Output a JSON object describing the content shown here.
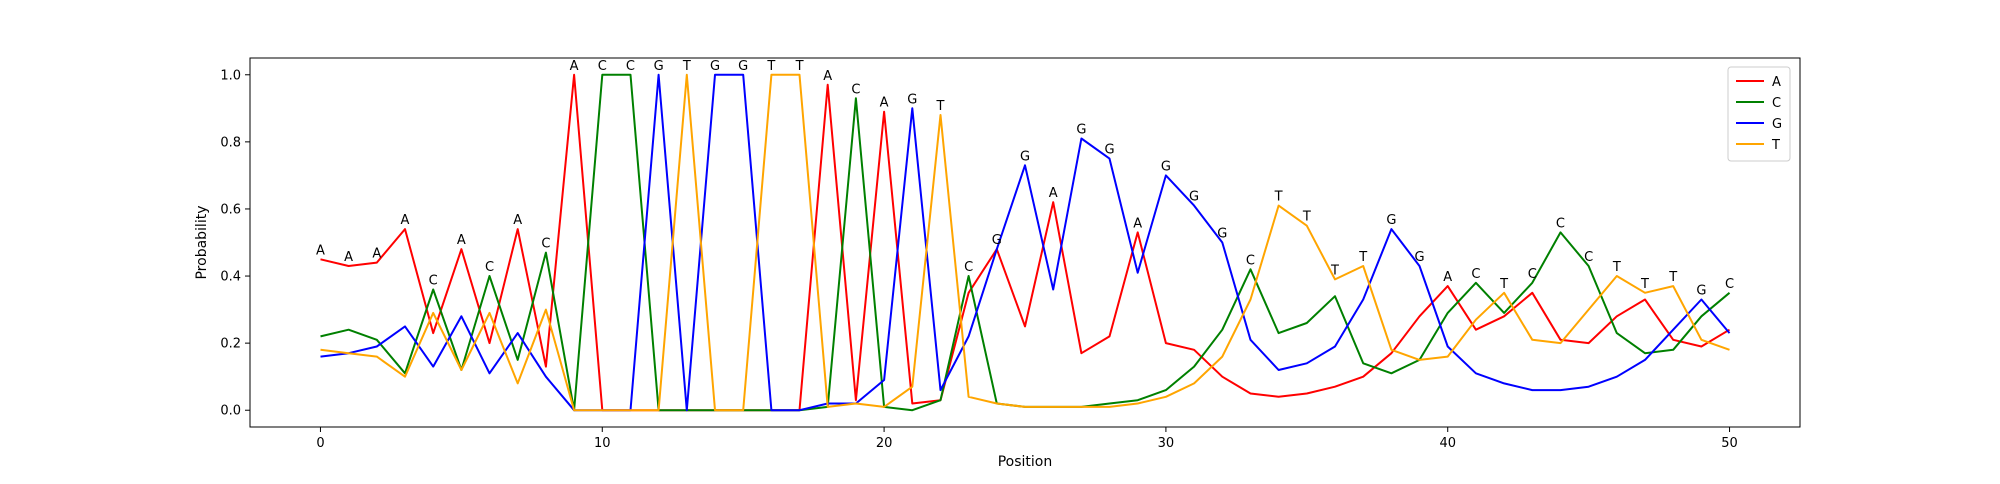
{
  "chart_data": {
    "type": "line",
    "title": "",
    "xlabel": "Position",
    "ylabel": "Probability",
    "xlim": [
      -2.5,
      52.5
    ],
    "ylim": [
      -0.05,
      1.05
    ],
    "xticks": [
      0,
      10,
      20,
      30,
      40,
      50
    ],
    "yticks": [
      0.0,
      0.2,
      0.4,
      0.6,
      0.8,
      1.0
    ],
    "x_tick_labels": [
      "0",
      "10",
      "20",
      "30",
      "40",
      "50"
    ],
    "y_tick_labels": [
      "0.0",
      "0.2",
      "0.4",
      "0.6",
      "0.8",
      "1.0"
    ],
    "grid": false,
    "legend_position": "top-right",
    "x": [
      0,
      1,
      2,
      3,
      4,
      5,
      6,
      7,
      8,
      9,
      10,
      11,
      12,
      13,
      14,
      15,
      16,
      17,
      18,
      19,
      20,
      21,
      22,
      23,
      24,
      25,
      26,
      27,
      28,
      29,
      30,
      31,
      32,
      33,
      34,
      35,
      36,
      37,
      38,
      39,
      40,
      41,
      42,
      43,
      44,
      45,
      46,
      47,
      48,
      49,
      50
    ],
    "series": [
      {
        "name": "A",
        "color": "#ff0000",
        "values": [
          0.45,
          0.43,
          0.44,
          0.54,
          0.23,
          0.48,
          0.2,
          0.54,
          0.13,
          1.0,
          0.0,
          0.0,
          0.0,
          0.0,
          0.0,
          0.0,
          0.0,
          0.0,
          0.97,
          0.03,
          0.89,
          0.02,
          0.03,
          0.35,
          0.48,
          0.25,
          0.62,
          0.17,
          0.22,
          0.53,
          0.2,
          0.18,
          0.1,
          0.05,
          0.04,
          0.05,
          0.07,
          0.1,
          0.17,
          0.28,
          0.37,
          0.24,
          0.28,
          0.35,
          0.21,
          0.2,
          0.28,
          0.33,
          0.21,
          0.19,
          0.24
        ]
      },
      {
        "name": "C",
        "color": "#008000",
        "values": [
          0.22,
          0.24,
          0.21,
          0.11,
          0.36,
          0.12,
          0.4,
          0.15,
          0.47,
          0.0,
          1.0,
          1.0,
          0.0,
          0.0,
          0.0,
          0.0,
          0.0,
          0.0,
          0.01,
          0.93,
          0.01,
          0.0,
          0.03,
          0.4,
          0.02,
          0.01,
          0.01,
          0.01,
          0.02,
          0.03,
          0.06,
          0.13,
          0.24,
          0.42,
          0.23,
          0.26,
          0.34,
          0.14,
          0.11,
          0.15,
          0.29,
          0.38,
          0.29,
          0.38,
          0.53,
          0.43,
          0.23,
          0.17,
          0.18,
          0.28,
          0.35
        ]
      },
      {
        "name": "G",
        "color": "#0000ff",
        "values": [
          0.16,
          0.17,
          0.19,
          0.25,
          0.13,
          0.28,
          0.11,
          0.23,
          0.1,
          0.0,
          0.0,
          0.0,
          1.0,
          0.0,
          1.0,
          1.0,
          0.0,
          0.0,
          0.02,
          0.02,
          0.09,
          0.9,
          0.06,
          0.22,
          0.48,
          0.73,
          0.36,
          0.81,
          0.75,
          0.41,
          0.7,
          0.61,
          0.5,
          0.21,
          0.12,
          0.14,
          0.19,
          0.33,
          0.54,
          0.43,
          0.19,
          0.11,
          0.08,
          0.06,
          0.06,
          0.07,
          0.1,
          0.15,
          0.24,
          0.33,
          0.23
        ]
      },
      {
        "name": "T",
        "color": "#ffa500",
        "values": [
          0.18,
          0.17,
          0.16,
          0.1,
          0.29,
          0.12,
          0.29,
          0.08,
          0.3,
          0.0,
          0.0,
          0.0,
          0.0,
          1.0,
          0.0,
          0.0,
          1.0,
          1.0,
          0.01,
          0.02,
          0.01,
          0.07,
          0.88,
          0.04,
          0.02,
          0.01,
          0.01,
          0.01,
          0.01,
          0.02,
          0.04,
          0.08,
          0.16,
          0.33,
          0.61,
          0.55,
          0.39,
          0.43,
          0.18,
          0.15,
          0.16,
          0.27,
          0.35,
          0.21,
          0.2,
          0.3,
          0.4,
          0.35,
          0.37,
          0.21,
          0.18
        ]
      }
    ],
    "annotations": {
      "letters": [
        "A",
        "A",
        "A",
        "A",
        "C",
        "A",
        "C",
        "A",
        "C",
        "A",
        "C",
        "C",
        "G",
        "T",
        "G",
        "G",
        "T",
        "T",
        "A",
        "C",
        "A",
        "G",
        "T",
        "C",
        "G",
        "G",
        "A",
        "G",
        "G",
        "A",
        "G",
        "G",
        "G",
        "C",
        "T",
        "T",
        "T",
        "T",
        "G",
        "G",
        "A",
        "C",
        "T",
        "C",
        "C",
        "C",
        "T",
        "T",
        "T",
        "G",
        "C"
      ]
    }
  }
}
